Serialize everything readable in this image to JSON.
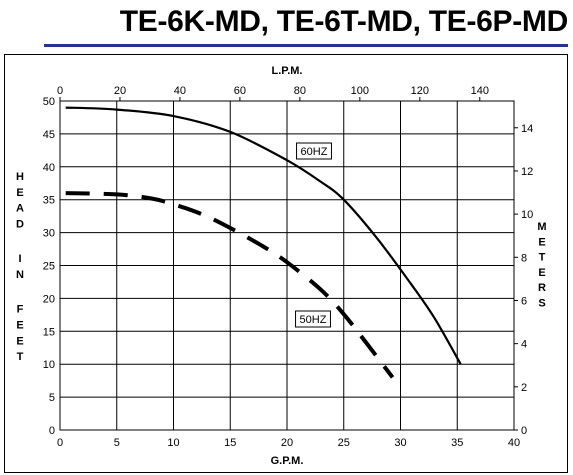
{
  "page": {
    "title": "TE-6K-MD, TE-6T-MD, TE-6P-MD",
    "accent_color": "#1c2fb8"
  },
  "chart_data": {
    "type": "line",
    "title": "TE-6K-MD, TE-6T-MD, TE-6P-MD",
    "xlabel": "G.P.M.",
    "x2label": "L.P.M.",
    "ylabel": "HEAD IN FEET",
    "y2label": "METERS",
    "xlim": [
      0,
      40
    ],
    "ylim": [
      0,
      50
    ],
    "x_ticks": [
      0,
      5,
      10,
      15,
      20,
      25,
      30,
      35,
      40
    ],
    "y_ticks": [
      0,
      5,
      10,
      15,
      20,
      25,
      30,
      35,
      40,
      45,
      50
    ],
    "x2_ticks": [
      0,
      20,
      40,
      60,
      80,
      100,
      120,
      140
    ],
    "y2_ticks": [
      0,
      2,
      4,
      6,
      8,
      10,
      12,
      14
    ],
    "grid": true,
    "series": [
      {
        "name": "60HZ",
        "style": "solid",
        "color": "#000000",
        "x": [
          0.5,
          5,
          10,
          15,
          20,
          23,
          25,
          28,
          31,
          33,
          35.3
        ],
        "y": [
          49,
          48.7,
          47.7,
          45.3,
          41,
          37.7,
          35,
          29,
          22,
          17,
          10
        ]
      },
      {
        "name": "50HZ",
        "style": "dashed",
        "color": "#000000",
        "x": [
          0.5,
          5,
          8,
          10,
          12.5,
          15,
          18,
          20,
          23,
          25,
          27,
          29.3
        ],
        "y": [
          36,
          35.8,
          35.2,
          34.3,
          32.8,
          30.7,
          27.8,
          25.5,
          21.3,
          17.6,
          13.2,
          8
        ]
      }
    ]
  }
}
